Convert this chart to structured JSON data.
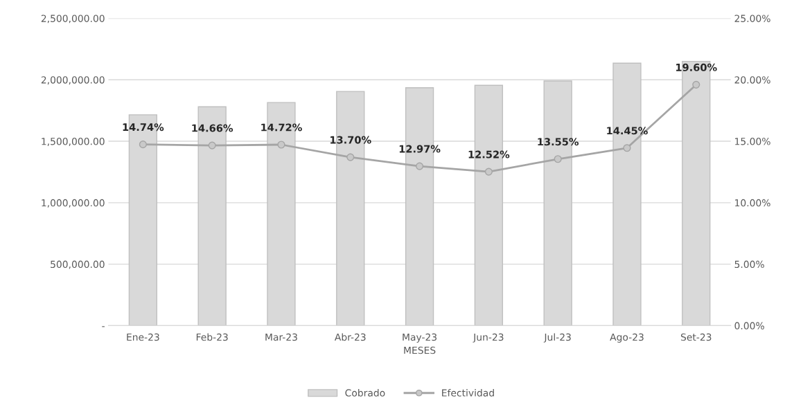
{
  "chart_data": {
    "type": "bar",
    "xlabel": "MESES",
    "categories": [
      "Ene-23",
      "Feb-23",
      "Mar-23",
      "Abr-23",
      "May-23",
      "Jun-23",
      "Jul-23",
      "Ago-23",
      "Set-23"
    ],
    "series": [
      {
        "name": "Cobrado",
        "color": "#d9d9d9",
        "values": [
          1715000,
          1780000,
          1815000,
          1905000,
          1935000,
          1955000,
          1990000,
          2135000,
          2150000
        ]
      },
      {
        "name": "Efectividad",
        "type": "line",
        "axis": "y2",
        "color": "#a5a5a5",
        "marker": "circle",
        "values": [
          14.74,
          14.66,
          14.72,
          13.7,
          12.97,
          12.52,
          13.55,
          14.45,
          19.6
        ],
        "value_labels": [
          "14.74%",
          "14.66%",
          "14.72%",
          "13.70%",
          "12.97%",
          "12.52%",
          "13.55%",
          "14.45%",
          "19.60%"
        ]
      }
    ],
    "ylim": [
      0,
      2500000
    ],
    "yticks": [
      {
        "value": 0,
        "label": "-"
      },
      {
        "value": 500000,
        "label": "500,000.00"
      },
      {
        "value": 1000000,
        "label": "1,000,000.00"
      },
      {
        "value": 1500000,
        "label": "1,500,000.00"
      },
      {
        "value": 2000000,
        "label": "2,000,000.00"
      },
      {
        "value": 2500000,
        "label": "2,500,000.00"
      }
    ],
    "y2lim": [
      0,
      25
    ],
    "y2ticks": [
      {
        "value": 0,
        "label": "0.00%"
      },
      {
        "value": 5,
        "label": "5.00%"
      },
      {
        "value": 10,
        "label": "10.00%"
      },
      {
        "value": 15,
        "label": "15.00%"
      },
      {
        "value": 20,
        "label": "20.00%"
      },
      {
        "value": 25,
        "label": "25.00%"
      }
    ],
    "grid": "y",
    "legend": "bottom"
  }
}
